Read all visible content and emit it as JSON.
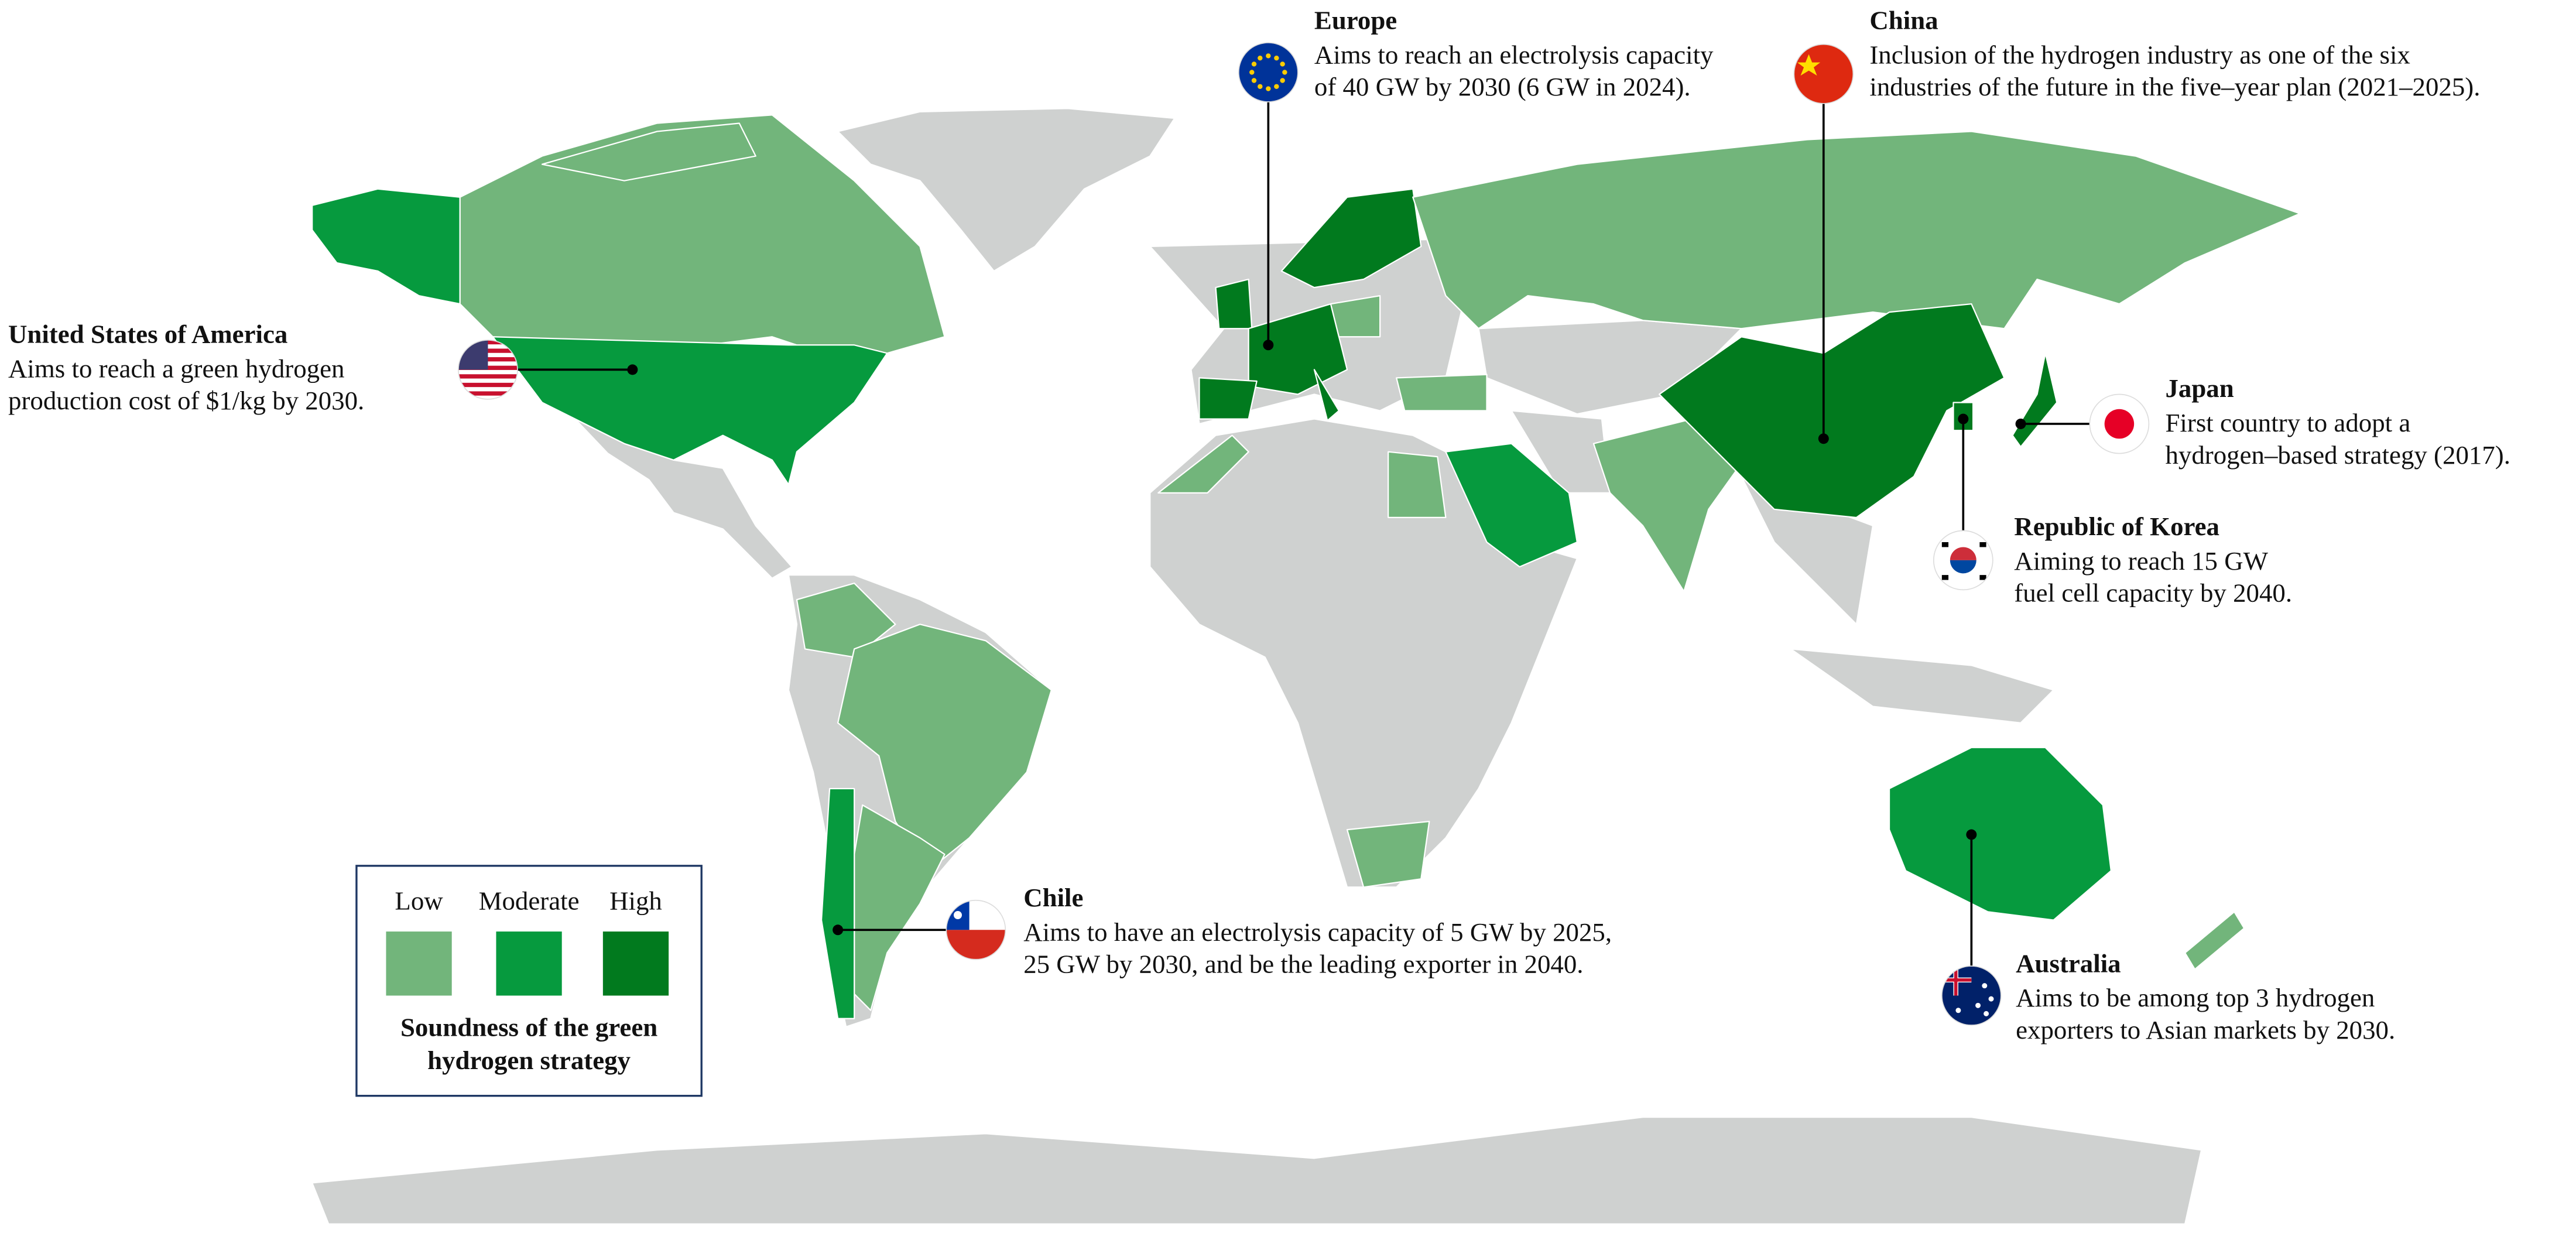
{
  "annotations": [
    {
      "title": "United States of America",
      "lines": [
        "Aims to reach a green hydrogen",
        "production cost of $1/kg by 2030."
      ]
    },
    {
      "title": "Europe",
      "lines": [
        "Aims to reach an electrolysis capacity",
        "of 40 GW by 2030 (6 GW in 2024)."
      ]
    },
    {
      "title": "China",
      "lines": [
        "Inclusion of the hydrogen industry as one of the six",
        "industries of the future in the five–year plan (2021–2025)."
      ]
    },
    {
      "title": "Japan",
      "lines": [
        "First country to adopt a",
        "hydrogen–based strategy (2017)."
      ]
    },
    {
      "title": "Republic of Korea",
      "lines": [
        "Aiming to reach 15 GW",
        "fuel cell capacity by 2040."
      ]
    },
    {
      "title": "Chile",
      "lines": [
        "Aims to have an electrolysis capacity of 5 GW by 2025,",
        "25 GW by 2030, and be the leading exporter in 2040."
      ]
    },
    {
      "title": "Australia",
      "lines": [
        "Aims to be among top 3 hydrogen",
        "exporters to Asian markets by 2030."
      ]
    }
  ],
  "legend": {
    "levels": [
      {
        "label": "Low",
        "color": "#72b57b"
      },
      {
        "label": "Moderate",
        "color": "#069a3e"
      },
      {
        "label": "High",
        "color": "#017a1e"
      }
    ],
    "title": [
      "Soundness of the green",
      "hydrogen strategy"
    ]
  }
}
